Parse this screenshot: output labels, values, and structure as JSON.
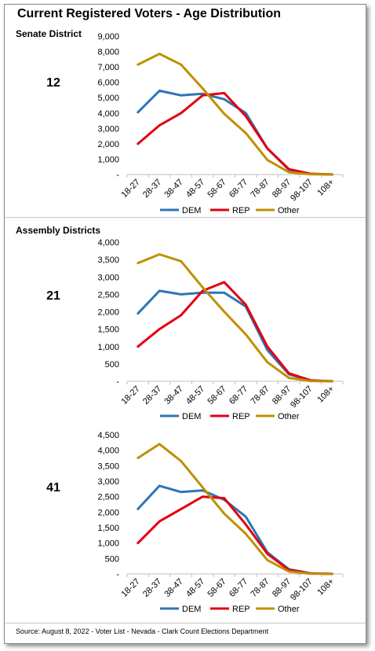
{
  "title": "Current Registered Voters - Age Distribution",
  "senate_label": "Senate District",
  "assembly_label": "Assembly Districts",
  "source": "Source: August 8, 2022 - Voter List - Nevada - Clark Count Elections Department",
  "colors": {
    "DEM": "#2e75b6",
    "REP": "#e3000f",
    "Other": "#bf9000"
  },
  "chart_data": [
    {
      "type": "line",
      "district": "12",
      "categories": [
        "18-27",
        "28-37",
        "38-47",
        "48-57",
        "58-67",
        "68-77",
        "78-87",
        "88-97",
        "98-107",
        "108+"
      ],
      "ylim": [
        0,
        9000
      ],
      "yticks": [
        "-",
        "1,000",
        "2,000",
        "3,000",
        "4,000",
        "5,000",
        "6,000",
        "7,000",
        "8,000",
        "9,000"
      ],
      "legend_position": "bottom",
      "grid": false,
      "series": [
        {
          "name": "DEM",
          "values": [
            4050,
            5450,
            5150,
            5250,
            4900,
            4000,
            1700,
            300,
            40,
            5
          ]
        },
        {
          "name": "REP",
          "values": [
            2000,
            3200,
            4000,
            5150,
            5300,
            3800,
            1700,
            350,
            50,
            5
          ]
        },
        {
          "name": "Other",
          "values": [
            7150,
            7850,
            7150,
            5600,
            3950,
            2700,
            950,
            150,
            20,
            5
          ]
        }
      ]
    },
    {
      "type": "line",
      "district": "21",
      "categories": [
        "18-27",
        "28-37",
        "38-47",
        "48-57",
        "58-67",
        "68-77",
        "78-87",
        "88-97",
        "98-107",
        "108+"
      ],
      "ylim": [
        0,
        4000
      ],
      "yticks": [
        "-",
        "500",
        "1,000",
        "1,500",
        "2,000",
        "2,500",
        "3,000",
        "3,500",
        "4,000"
      ],
      "legend_position": "bottom",
      "grid": false,
      "series": [
        {
          "name": "DEM",
          "values": [
            1950,
            2600,
            2500,
            2550,
            2550,
            2150,
            900,
            200,
            20,
            2
          ]
        },
        {
          "name": "REP",
          "values": [
            1000,
            1500,
            1900,
            2600,
            2850,
            2200,
            1000,
            230,
            30,
            2
          ]
        },
        {
          "name": "Other",
          "values": [
            3400,
            3650,
            3450,
            2700,
            2000,
            1350,
            550,
            100,
            10,
            2
          ]
        }
      ]
    },
    {
      "type": "line",
      "district": "41",
      "categories": [
        "18-27",
        "28-37",
        "38-47",
        "48-57",
        "58-67",
        "68-77",
        "78-87",
        "88-97",
        "98-107",
        "108+"
      ],
      "ylim": [
        0,
        4500
      ],
      "yticks": [
        "-",
        "500",
        "1,000",
        "1,500",
        "2,000",
        "2,500",
        "3,000",
        "3,500",
        "4,000",
        "4,500"
      ],
      "legend_position": "bottom",
      "grid": false,
      "series": [
        {
          "name": "DEM",
          "values": [
            2100,
            2850,
            2650,
            2700,
            2400,
            1850,
            700,
            150,
            20,
            2
          ]
        },
        {
          "name": "REP",
          "values": [
            1000,
            1700,
            2100,
            2500,
            2450,
            1600,
            650,
            130,
            20,
            2
          ]
        },
        {
          "name": "Other",
          "values": [
            3750,
            4200,
            3650,
            2800,
            1950,
            1300,
            450,
            80,
            10,
            2
          ]
        }
      ]
    }
  ]
}
